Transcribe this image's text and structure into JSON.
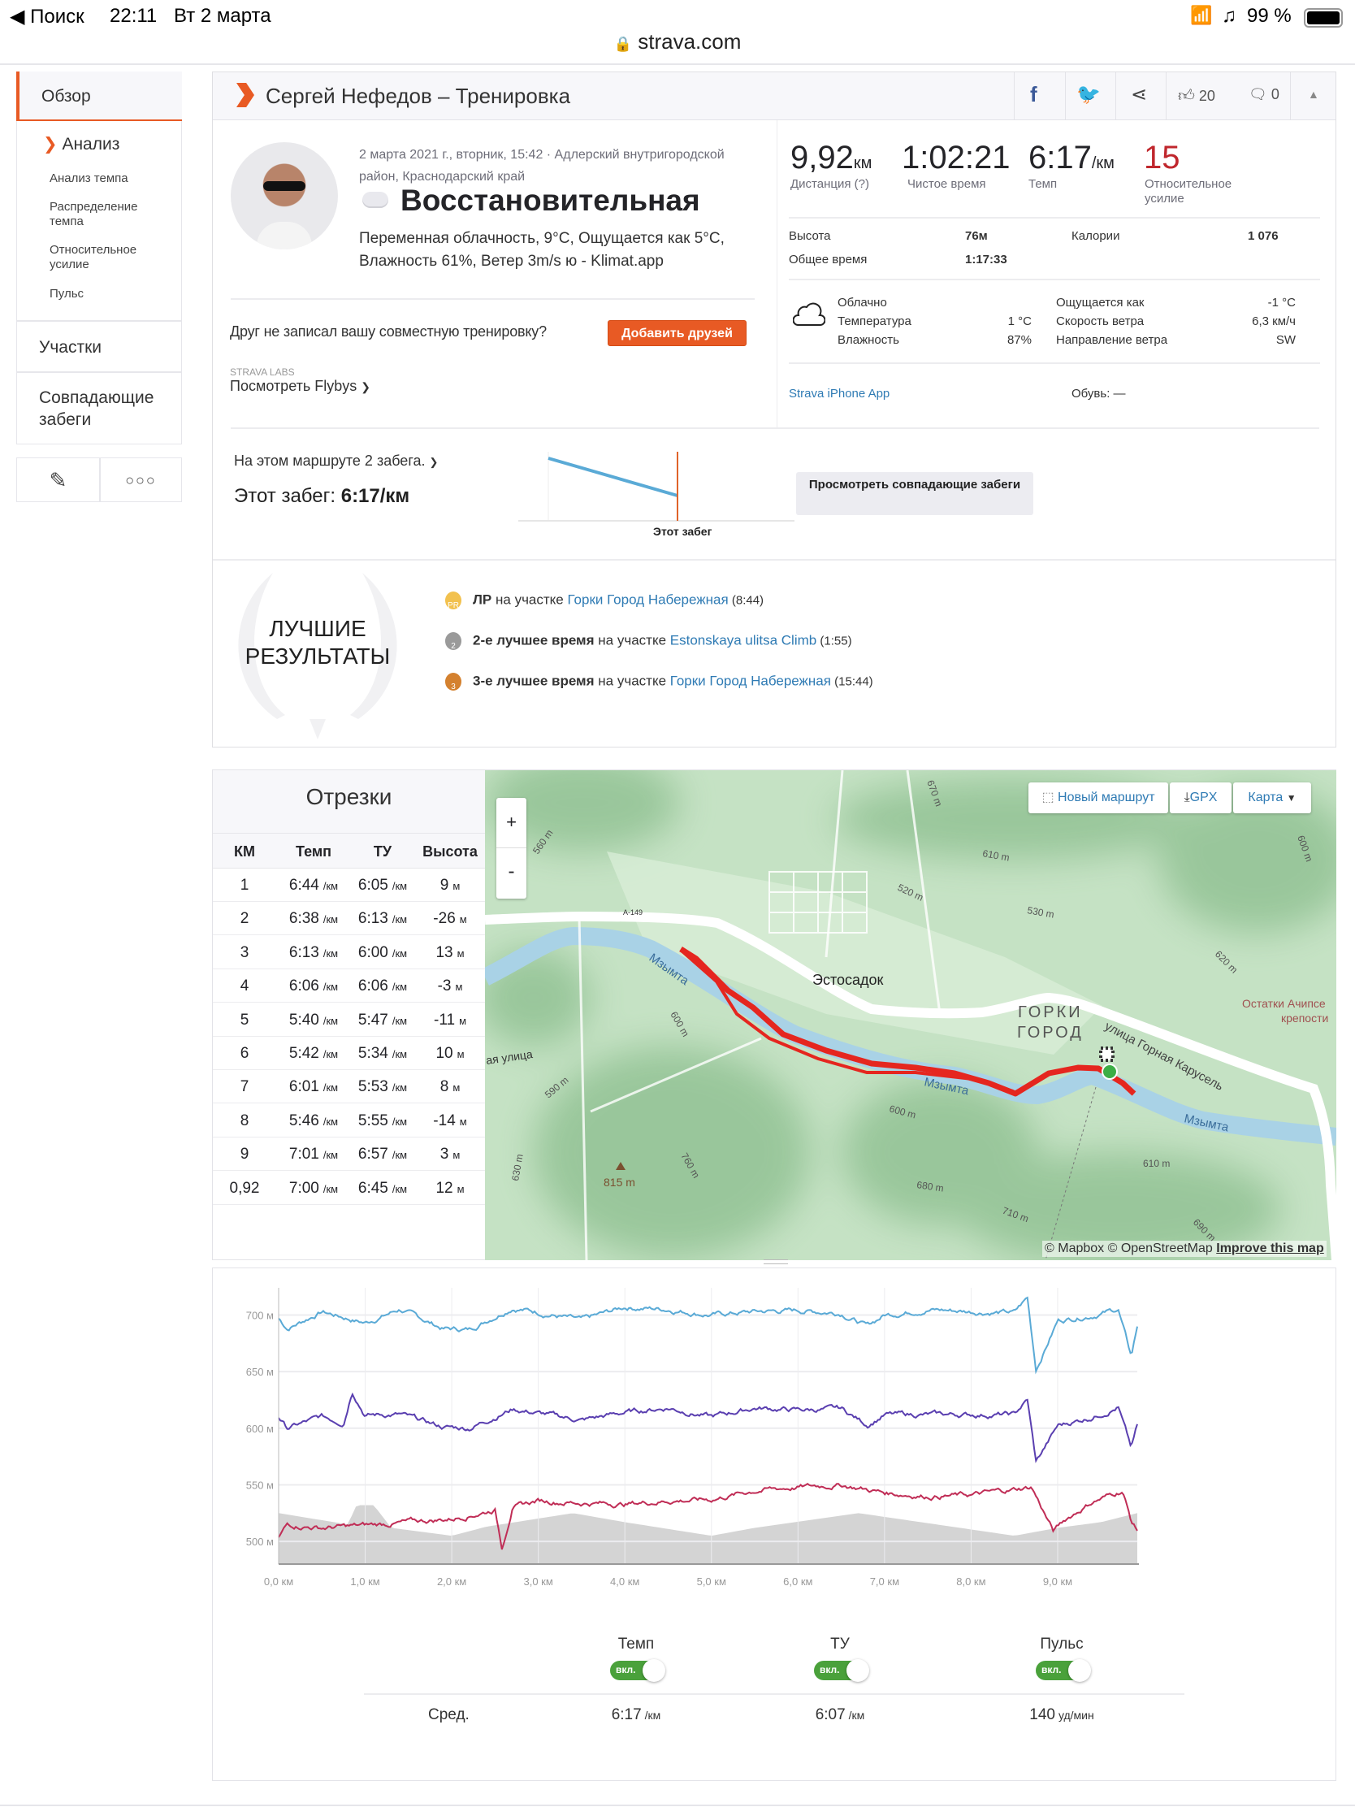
{
  "status_bar": {
    "back": "◀ Поиск",
    "time": "22:11",
    "date": "Вт 2 марта",
    "battery": "99 %"
  },
  "browser": {
    "url": "strava.com"
  },
  "sidebar": {
    "overview": "Обзор",
    "analysis": "Анализ",
    "sub_items": [
      "Анализ темпа",
      "Распределение темпа",
      "Относительное усилие",
      "Пульс"
    ],
    "segments": "Участки",
    "matched": "Совпадающие забеги"
  },
  "header": {
    "title": "Сергей Нефедов – Тренировка",
    "kudos": "20",
    "comments": "0"
  },
  "activity": {
    "date_location": "2 марта 2021 г., вторник, 15:42 · Адлерский внутригородской район, Краснодарский край",
    "name": "Восстановительная",
    "description": "Переменная облачность, 9°C, Ощущается как 5°C, Влажность 61%, Ветер 3m/s ю - Klimat.app",
    "friend_prompt": "Друг не записал вашу совместную тренировку?",
    "add_friends": "Добавить друзей",
    "labs": "STRAVA LABS",
    "flybys": "Посмотреть Flybys"
  },
  "stats": {
    "distance": "9,92",
    "distance_unit": "км",
    "distance_label": "Дистанция (?)",
    "moving_time": "1:02:21",
    "moving_label": "Чистое время",
    "pace": "6:17",
    "pace_unit": "/км",
    "pace_label": "Темп",
    "effort": "15",
    "effort_label": "Относительное усилие",
    "elev_label": "Высота",
    "elev": "76м",
    "cal_label": "Калории",
    "cal": "1 076",
    "elapsed_label": "Общее время",
    "elapsed": "1:17:33"
  },
  "weather": {
    "cond": "Облачно",
    "temp_label": "Температура",
    "temp": "1 °C",
    "hum_label": "Влажность",
    "hum": "87%",
    "feels_label": "Ощущается как",
    "feels": "-1 °C",
    "wind_label": "Скорость ветра",
    "wind": "6,3 км/ч",
    "dir_label": "Направление ветра",
    "dir": "SW"
  },
  "device": {
    "app": "Strava iPhone App",
    "shoes": "Обувь: —"
  },
  "route": {
    "count": "На этом маршруте 2 забега.",
    "this_label": "Этот забег: ",
    "this_value": "6:17/км",
    "chart_label": "Этот забег",
    "view_button": "Просмотреть совпадающие забеги"
  },
  "best": {
    "title1": "ЛУЧШИЕ",
    "title2": "РЕЗУЛЬТАТЫ",
    "items": [
      {
        "badge": "PR",
        "rank": "ЛР",
        "mid": " на участке ",
        "segment": "Горки Город Набережная",
        "time": " (8:44)",
        "color": "#f2c14e"
      },
      {
        "badge": "2",
        "rank": "2-е лучшее время",
        "mid": " на участке ",
        "segment": "Estonskaya ulitsa Climb",
        "time": " (1:55)",
        "color": "#9a9a9a"
      },
      {
        "badge": "3",
        "rank": "3-е лучшее время",
        "mid": " на участке ",
        "segment": "Горки Город Набережная",
        "time": " (15:44)",
        "color": "#d4812f"
      }
    ]
  },
  "splits": {
    "title": "Отрезки",
    "headers": [
      "КМ",
      "Темп",
      "ТУ",
      "Высота"
    ],
    "unit": "/км",
    "elev_unit": "м",
    "rows": [
      [
        "1",
        "6:44",
        "6:05",
        "9"
      ],
      [
        "2",
        "6:38",
        "6:13",
        "-26"
      ],
      [
        "3",
        "6:13",
        "6:00",
        "13"
      ],
      [
        "4",
        "6:06",
        "6:06",
        "-3"
      ],
      [
        "5",
        "5:40",
        "5:47",
        "-11"
      ],
      [
        "6",
        "5:42",
        "5:34",
        "10"
      ],
      [
        "7",
        "6:01",
        "5:53",
        "8"
      ],
      [
        "8",
        "5:46",
        "5:55",
        "-14"
      ],
      [
        "9",
        "7:01",
        "6:57",
        "3"
      ],
      [
        "0,92",
        "7:00",
        "6:45",
        "12"
      ]
    ]
  },
  "map": {
    "new_route": "Новый маршрут",
    "gpx": "GPX",
    "map_type": "Карта",
    "zoom_in": "+",
    "zoom_out": "-",
    "attribution": "© Mapbox © OpenStreetMap",
    "improve": "Improve this map",
    "labels": [
      "Эстосадок",
      "ГОРКИ",
      "ГОРОД",
      "улица Горная Карусель",
      "Мзымта",
      "Мзымта",
      "Мзымта",
      "815 m",
      "610 m",
      "520 m",
      "530 m",
      "620 m",
      "600 m",
      "600 m",
      "590 m",
      "630 m",
      "760 m",
      "680 m",
      "710 m",
      "690 m",
      "610 m",
      "560 m",
      "670 m",
      "600 m",
      "А-149",
      "Остатки Ачипсе",
      "крепости",
      "ая улица"
    ]
  },
  "chart_data": {
    "type": "line",
    "xlabel": "",
    "ylabel": "",
    "xlim": [
      0,
      9.92
    ],
    "ylim": [
      480,
      724
    ],
    "y_ticks": [
      "700 м",
      "650 м",
      "600 м",
      "550 м",
      "500 м"
    ],
    "y_tick_values": [
      700,
      650,
      600,
      550,
      500
    ],
    "x_ticks": [
      "0,0 км",
      "1,0 км",
      "2,0 км",
      "3,0 км",
      "4,0 км",
      "5,0 км",
      "6,0 км",
      "7,0 км",
      "8,0 км",
      "9,0 км"
    ],
    "x_tick_values": [
      0,
      1,
      2,
      3,
      4,
      5,
      6,
      7,
      8,
      9
    ],
    "series": [
      {
        "name": "Темп",
        "color": "#5aaad6",
        "x": [
          0,
          0.1,
          0.5,
          1,
          1.4,
          1.9,
          2.2,
          2.7,
          3.5,
          4,
          4.5,
          5,
          5.5,
          6,
          6.5,
          6.8,
          7,
          7.5,
          8,
          8.5,
          8.65,
          8.75,
          9,
          9.4,
          9.7,
          9.85,
          9.92
        ],
        "y": [
          697,
          688,
          703,
          693,
          705,
          688,
          687,
          707,
          695,
          707,
          705,
          700,
          703,
          704,
          702,
          690,
          700,
          705,
          703,
          702,
          715,
          652,
          695,
          700,
          705,
          663,
          690
        ]
      },
      {
        "name": "ТУ",
        "color": "#5a3fb0",
        "x": [
          0,
          0.1,
          0.5,
          0.75,
          0.85,
          1,
          1.4,
          1.9,
          2.2,
          2.7,
          3.5,
          4,
          4.5,
          5,
          5.5,
          6,
          6.5,
          6.8,
          7,
          7.5,
          8,
          8.5,
          8.65,
          8.75,
          9,
          9.4,
          9.7,
          9.85,
          9.92
        ],
        "y": [
          610,
          600,
          610,
          605,
          634,
          612,
          612,
          601,
          600,
          617,
          607,
          614,
          618,
          610,
          618,
          616,
          617,
          603,
          612,
          612,
          612,
          612,
          625,
          570,
          602,
          610,
          619,
          582,
          602
        ]
      },
      {
        "name": "Пульс",
        "color": "#c02d56",
        "x": [
          0,
          0.1,
          0.5,
          1,
          1.5,
          2,
          2.5,
          2.58,
          2.7,
          3,
          3.5,
          4,
          4.5,
          5,
          5.5,
          6,
          6.5,
          7,
          7.5,
          8,
          8.5,
          8.7,
          8.95,
          9.1,
          9.4,
          9.75,
          9.85,
          9.92
        ],
        "y": [
          503,
          515,
          512,
          514,
          517,
          520,
          528,
          495,
          530,
          536,
          534,
          533,
          536,
          537,
          545,
          548,
          550,
          543,
          540,
          541,
          546,
          548,
          509,
          520,
          535,
          545,
          518,
          510
        ]
      },
      {
        "name": "Высота",
        "color": "#d4d4d4",
        "type": "area",
        "x": [
          0,
          0.8,
          0.9,
          1.1,
          1.3,
          2,
          2.4,
          3.4,
          4,
          5,
          5.5,
          6.7,
          7.6,
          8.5,
          9,
          9.5,
          9.92
        ],
        "y": [
          525,
          515,
          532,
          532,
          512,
          505,
          513,
          525,
          517,
          505,
          512,
          525,
          515,
          505,
          512,
          517,
          525
        ]
      }
    ]
  },
  "summary": {
    "cols": [
      "Темп",
      "ТУ",
      "Пульс"
    ],
    "toggle": "вкл.",
    "avg_label": "Сред.",
    "avg": [
      "6:17",
      "6:07",
      "140"
    ],
    "units": [
      "/км",
      "/км",
      "уд/мин"
    ]
  }
}
